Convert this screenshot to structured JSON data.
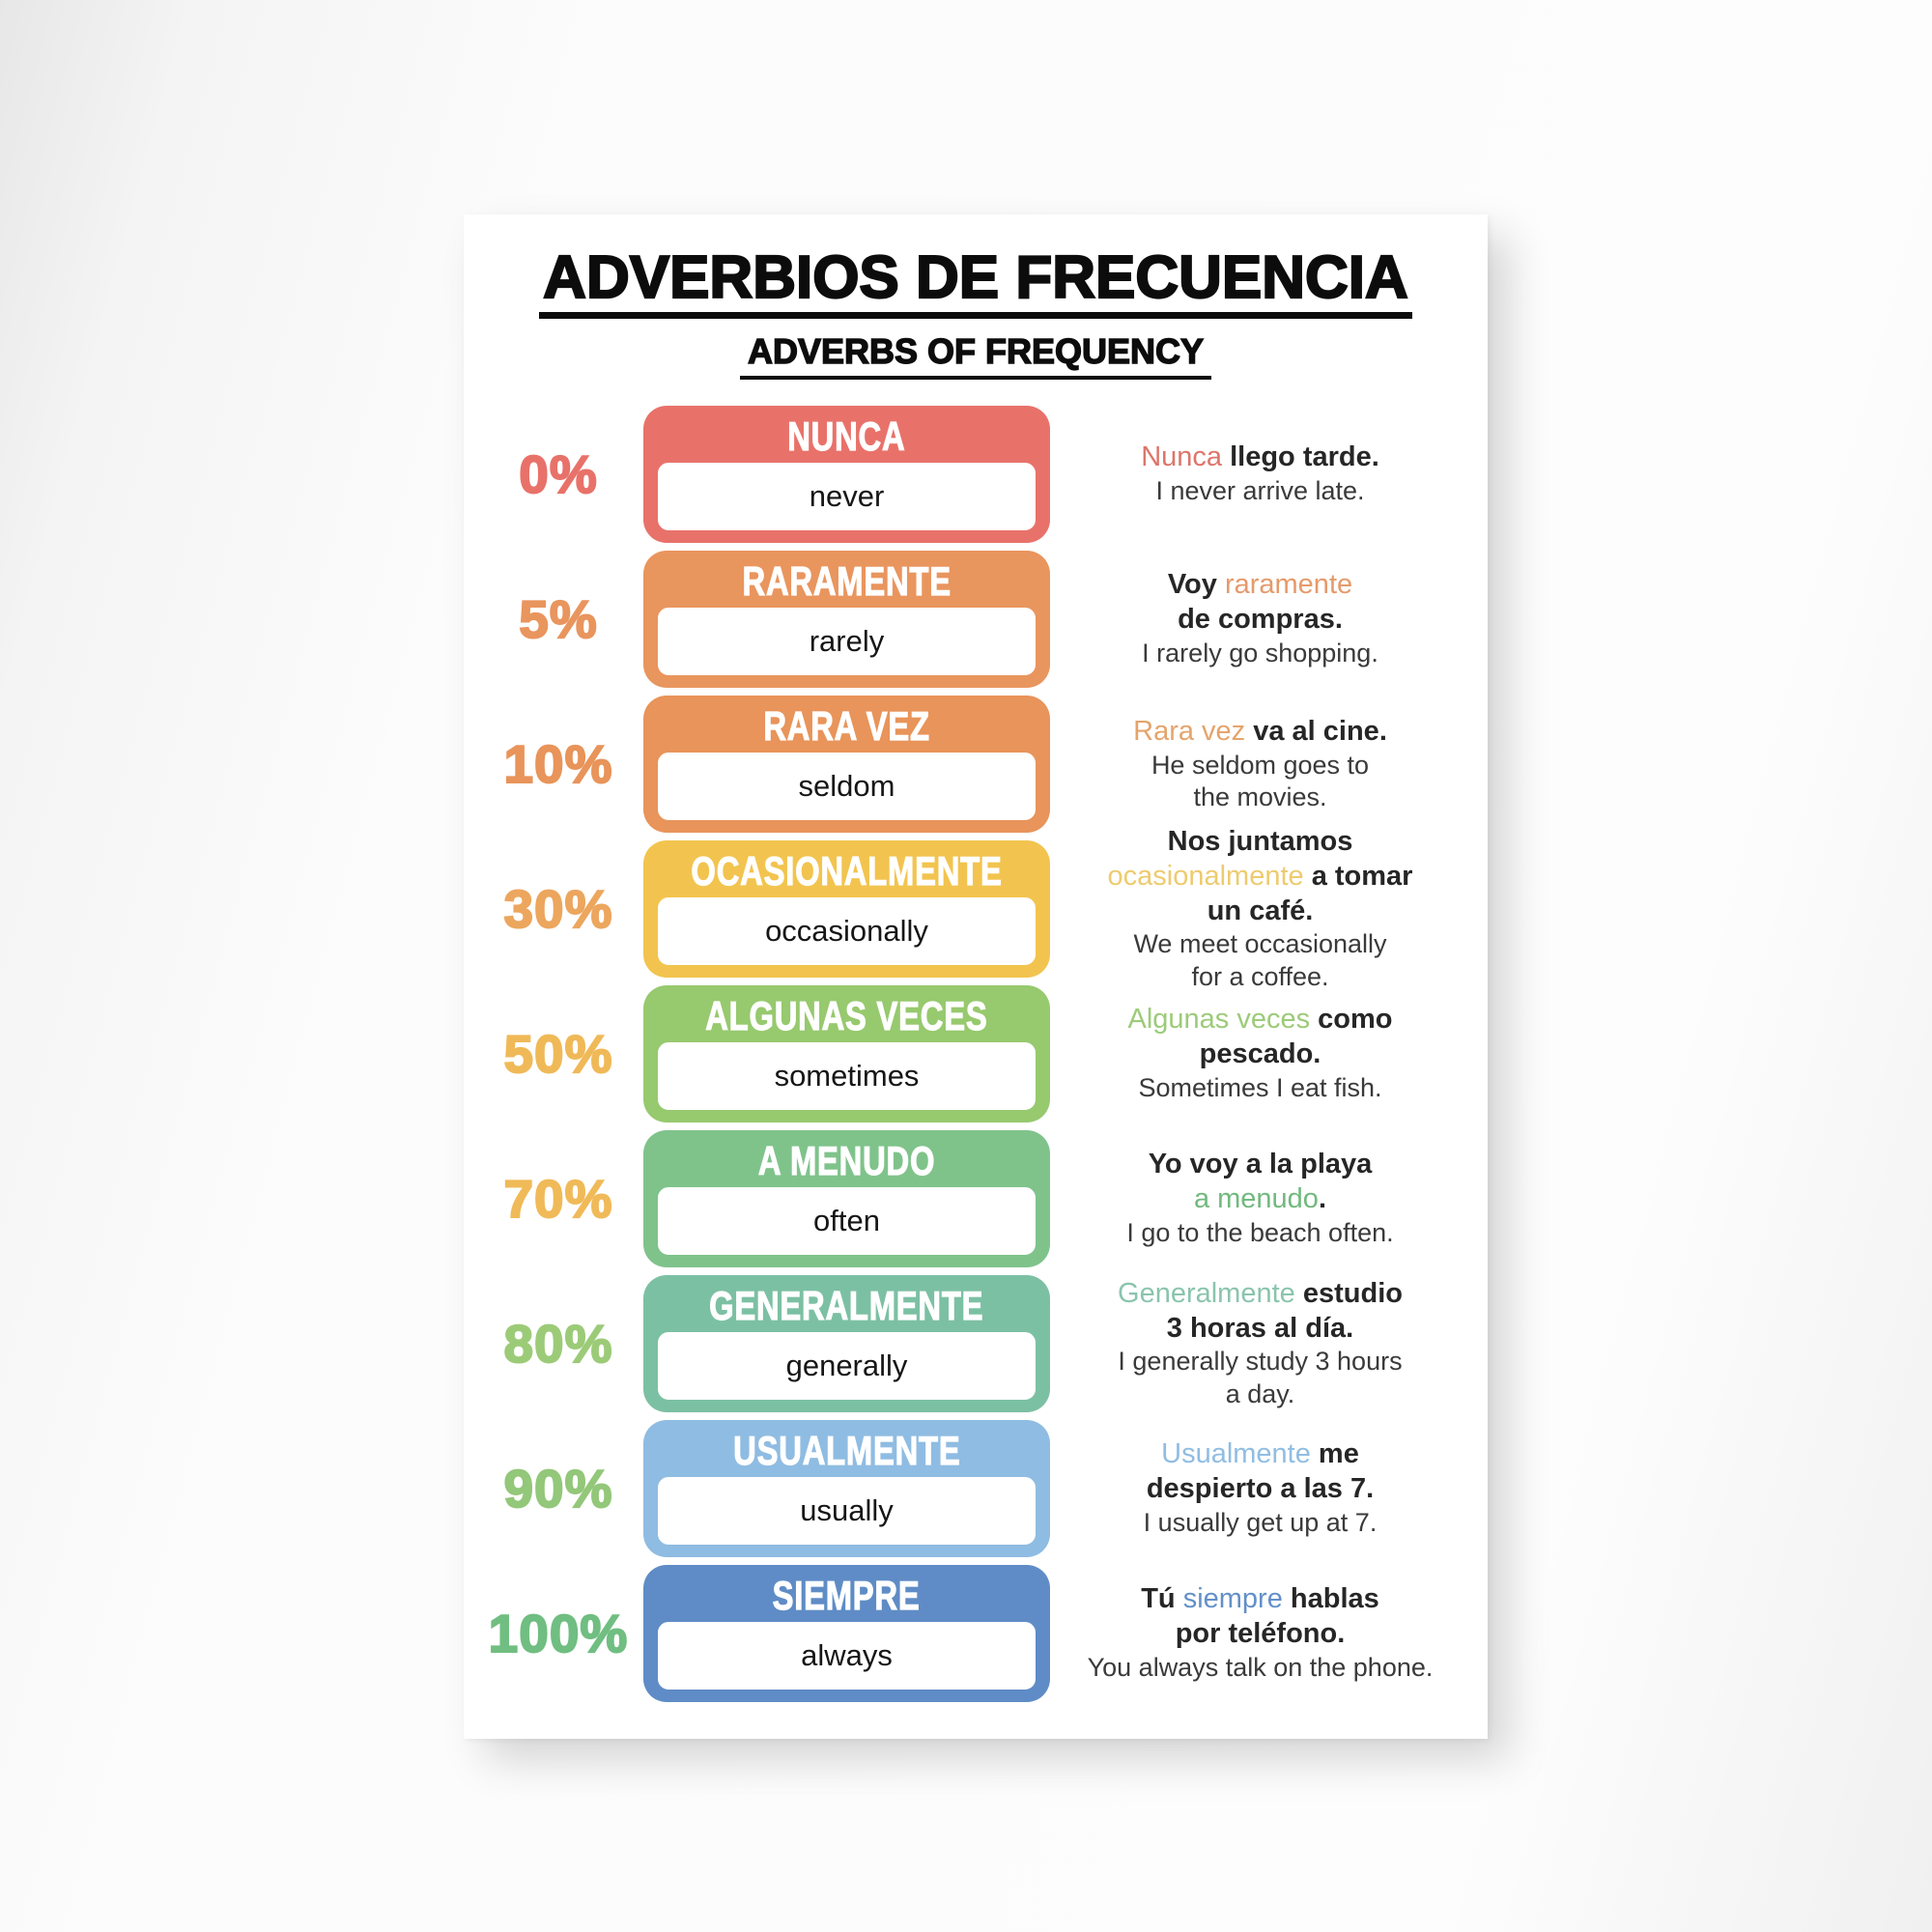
{
  "poster": {
    "title": "ADVERBIOS DE FRECUENCIA",
    "subtitle": "ADVERBS OF FREQUENCY",
    "rows": [
      {
        "percent": "0%",
        "percent_color": "#E8726A",
        "card_color": "#E8726A",
        "spanish": "NUNCA",
        "english": "never",
        "example_es": [
          {
            "text": "Nunca",
            "color": "#DD756B"
          },
          {
            "text": " llego tarde."
          }
        ],
        "example_en": "I never arrive late."
      },
      {
        "percent": "5%",
        "percent_color": "#E9955E",
        "card_color": "#E9955E",
        "spanish": "RARAMENTE",
        "english": "rarely",
        "example_es": [
          {
            "text": "Voy "
          },
          {
            "text": "raramente",
            "color": "#E59A6B"
          },
          {
            "text": "\nde compras."
          }
        ],
        "example_en": "I rarely go shopping."
      },
      {
        "percent": "10%",
        "percent_color": "#E8945A",
        "card_color": "#E8945A",
        "spanish": "RARA VEZ",
        "english": "seldom",
        "example_es": [
          {
            "text": "Rara vez",
            "color": "#E5A46C"
          },
          {
            "text": " va al cine."
          }
        ],
        "example_en": "He seldom goes to\nthe movies."
      },
      {
        "percent": "30%",
        "percent_color": "#ECA65E",
        "card_color": "#F2C44F",
        "spanish": "OCASIONALMENTE",
        "english": "occasionally",
        "example_es": [
          {
            "text": "Nos juntamos\n"
          },
          {
            "text": "ocasionalmente",
            "color": "#EDCB6F"
          },
          {
            "text": " a tomar\nun café."
          }
        ],
        "example_en": "We meet occasionally\nfor a coffee."
      },
      {
        "percent": "50%",
        "percent_color": "#F0B958",
        "card_color": "#97C96E",
        "spanish": "ALGUNAS VECES",
        "english": "sometimes",
        "example_es": [
          {
            "text": "Algunas veces",
            "color": "#9CCB79"
          },
          {
            "text": " como\npescado."
          }
        ],
        "example_en": "Sometimes I eat fish."
      },
      {
        "percent": "70%",
        "percent_color": "#F0BA58",
        "card_color": "#7FC38B",
        "spanish": "A MENUDO",
        "english": "often",
        "example_es": [
          {
            "text": "Yo voy a la playa\n"
          },
          {
            "text": "a menudo",
            "color": "#72B97E"
          },
          {
            "text": "."
          }
        ],
        "example_en": "I go to the beach often."
      },
      {
        "percent": "80%",
        "percent_color": "#9CCB78",
        "card_color": "#7CC0A3",
        "spanish": "GENERALMENTE",
        "english": "generally",
        "example_es": [
          {
            "text": "Generalmente",
            "color": "#8AC4AE"
          },
          {
            "text": " estudio\n3 horas al día."
          }
        ],
        "example_en": "I generally study 3 hours\na day."
      },
      {
        "percent": "90%",
        "percent_color": "#93C779",
        "card_color": "#8FBCE2",
        "spanish": "USUALMENTE",
        "english": "usually",
        "example_es": [
          {
            "text": "Usualmente",
            "color": "#90BDE3"
          },
          {
            "text": " me\ndespierto a las 7."
          }
        ],
        "example_en": "I usually get up at 7."
      },
      {
        "percent": "100%",
        "percent_color": "#70BE81",
        "card_color": "#5F8CC6",
        "spanish": "SIEMPRE",
        "english": "always",
        "example_es": [
          {
            "text": "Tú "
          },
          {
            "text": "siempre",
            "color": "#6390C8"
          },
          {
            "text": " hablas\npor teléfono."
          }
        ],
        "example_en": "You always talk on the phone."
      }
    ]
  }
}
